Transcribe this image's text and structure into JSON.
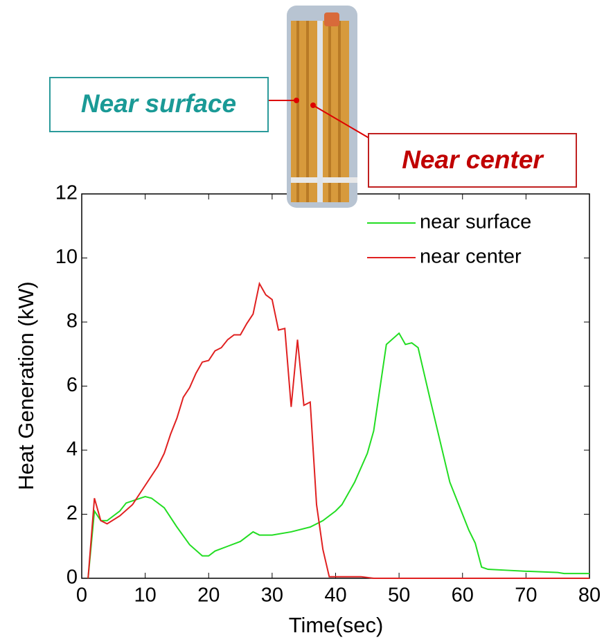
{
  "chart_data": {
    "type": "line",
    "xlabel": "Time(sec)",
    "ylabel": "Heat Generation (kW)",
    "annotations": [
      "Near surface",
      "Near center"
    ],
    "xlim": [
      0,
      80
    ],
    "xticks": [
      0,
      10,
      20,
      30,
      40,
      50,
      60,
      70,
      80
    ],
    "ylim": [
      0,
      12
    ],
    "yticks": [
      0,
      2,
      4,
      6,
      8,
      10,
      12
    ],
    "grid": false,
    "legend": "upper right",
    "series": [
      {
        "name": "near surface",
        "color": "#22dd22",
        "x": [
          1,
          2,
          3,
          4,
          6,
          7,
          10,
          11,
          13,
          15,
          17,
          19,
          20,
          21,
          23,
          25,
          27,
          28,
          30,
          33,
          36,
          38,
          40,
          41,
          43,
          45,
          46,
          48,
          50,
          51,
          52,
          53,
          55,
          58,
          60,
          61,
          62,
          63,
          64,
          67,
          70,
          75,
          76,
          80
        ],
        "values": [
          0,
          2.1,
          1.8,
          1.8,
          2.1,
          2.35,
          2.55,
          2.5,
          2.2,
          1.6,
          1.05,
          0.7,
          0.7,
          0.85,
          1.0,
          1.15,
          1.45,
          1.35,
          1.35,
          1.45,
          1.6,
          1.8,
          2.1,
          2.3,
          3.0,
          3.9,
          4.6,
          7.3,
          7.65,
          7.3,
          7.35,
          7.2,
          5.5,
          3.0,
          2.0,
          1.5,
          1.1,
          0.35,
          0.28,
          0.25,
          0.22,
          0.18,
          0.15,
          0.15
        ]
      },
      {
        "name": "near center",
        "color": "#e02020",
        "x": [
          1,
          2,
          3,
          4,
          6,
          8,
          10,
          12,
          13,
          14,
          15,
          16,
          17,
          18,
          19,
          20,
          21,
          22,
          23,
          24,
          25,
          26,
          27,
          28,
          29,
          30,
          31,
          32,
          33,
          34,
          35,
          36,
          37,
          38,
          39,
          44,
          46,
          80
        ],
        "values": [
          0,
          2.5,
          1.8,
          1.7,
          1.95,
          2.3,
          2.9,
          3.5,
          3.9,
          4.5,
          5.0,
          5.65,
          5.95,
          6.4,
          6.75,
          6.8,
          7.1,
          7.2,
          7.45,
          7.6,
          7.6,
          7.95,
          8.25,
          9.2,
          8.85,
          8.7,
          7.75,
          7.8,
          5.35,
          7.45,
          5.4,
          5.5,
          2.3,
          0.9,
          0.05,
          0.05,
          0,
          0
        ]
      }
    ]
  }
}
